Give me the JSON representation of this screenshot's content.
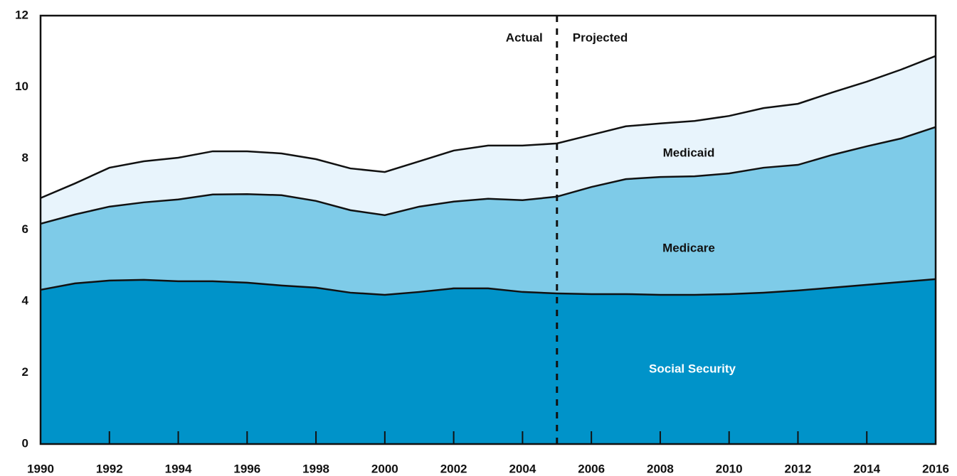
{
  "chart_data": {
    "type": "stacked_area",
    "x": [
      1990,
      1991,
      1992,
      1993,
      1994,
      1995,
      1996,
      1997,
      1998,
      1999,
      2000,
      2001,
      2002,
      2003,
      2004,
      2005,
      2006,
      2007,
      2008,
      2009,
      2010,
      2011,
      2012,
      2013,
      2014,
      2015,
      2016
    ],
    "series": [
      {
        "name": "Social Security",
        "color": "#0093c9",
        "label_color": "#ffffff",
        "values": [
          4.32,
          4.5,
          4.58,
          4.6,
          4.56,
          4.56,
          4.52,
          4.44,
          4.38,
          4.24,
          4.18,
          4.26,
          4.36,
          4.36,
          4.26,
          4.22,
          4.2,
          4.2,
          4.18,
          4.18,
          4.2,
          4.24,
          4.3,
          4.38,
          4.46,
          4.54,
          4.62
        ]
      },
      {
        "name": "Medicare",
        "color": "#7ecbe8",
        "label_color": "#111111",
        "values": [
          1.85,
          1.93,
          2.07,
          2.17,
          2.29,
          2.43,
          2.48,
          2.53,
          2.43,
          2.31,
          2.23,
          2.39,
          2.43,
          2.51,
          2.57,
          2.71,
          3.0,
          3.22,
          3.3,
          3.32,
          3.38,
          3.5,
          3.52,
          3.72,
          3.88,
          4.02,
          4.26
        ]
      },
      {
        "name": "Medicaid",
        "color": "#e8f4fc",
        "label_color": "#111111",
        "values": [
          0.72,
          0.87,
          1.09,
          1.15,
          1.17,
          1.21,
          1.2,
          1.17,
          1.17,
          1.17,
          1.21,
          1.27,
          1.43,
          1.49,
          1.53,
          1.49,
          1.46,
          1.48,
          1.5,
          1.55,
          1.61,
          1.67,
          1.71,
          1.75,
          1.81,
          1.93,
          1.99
        ]
      }
    ],
    "xlim": [
      1990,
      2016
    ],
    "xticks": [
      1990,
      1992,
      1994,
      1996,
      1998,
      2000,
      2002,
      2004,
      2006,
      2008,
      2010,
      2012,
      2014,
      2016
    ],
    "ylim": [
      0,
      12
    ],
    "yticks": [
      0,
      2,
      4,
      6,
      8,
      10,
      12
    ],
    "divider": 2005,
    "annotations": [
      "Actual",
      "Projected"
    ]
  }
}
